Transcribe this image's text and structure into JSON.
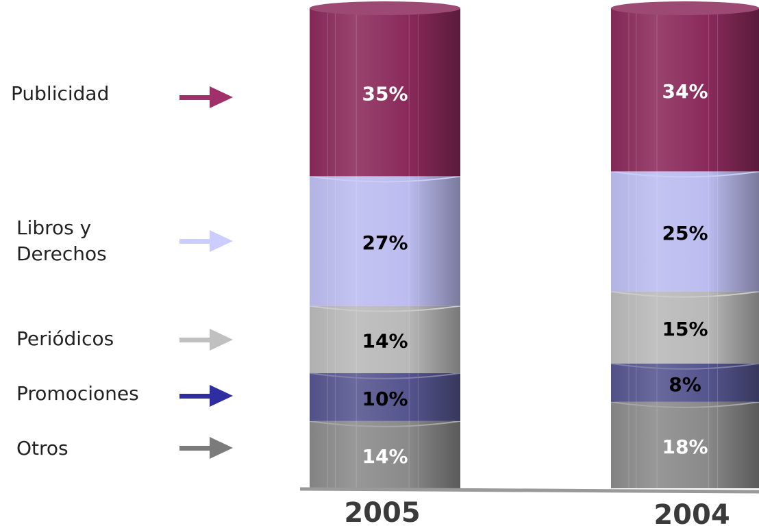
{
  "chart_data": {
    "type": "bar",
    "stacked": true,
    "style": "3d-cylinder",
    "categories": [
      "2005",
      "2004"
    ],
    "series": [
      {
        "name": "Otros",
        "values": [
          14,
          18
        ],
        "color": "#8a8a8a",
        "label_color": "#ffffff",
        "arrow_color": "#7b7b7b"
      },
      {
        "name": "Promociones",
        "values": [
          10,
          8
        ],
        "color": "#55558f",
        "label_color": "#000000",
        "arrow_color": "#2e2ea0"
      },
      {
        "name": "Periódicos",
        "values": [
          14,
          15
        ],
        "color": "#b9b9b9",
        "label_color": "#000000",
        "arrow_color": "#c0c0c0"
      },
      {
        "name": "Libros y\nDerechos",
        "values": [
          27,
          25
        ],
        "color": "#bcbcf0",
        "label_color": "#000000",
        "arrow_color": "#ccccff"
      },
      {
        "name": "Publicidad",
        "values": [
          35,
          34
        ],
        "color": "#8a2a5a",
        "label_color": "#ffffff",
        "arrow_color": "#a0306a"
      }
    ],
    "data_labels": [
      [
        "14%",
        "18%"
      ],
      [
        "10%",
        "8%"
      ],
      [
        "14%",
        "15%"
      ],
      [
        "27%",
        "25%"
      ],
      [
        "35%",
        "34%"
      ]
    ],
    "legend": "left",
    "grid": false
  }
}
